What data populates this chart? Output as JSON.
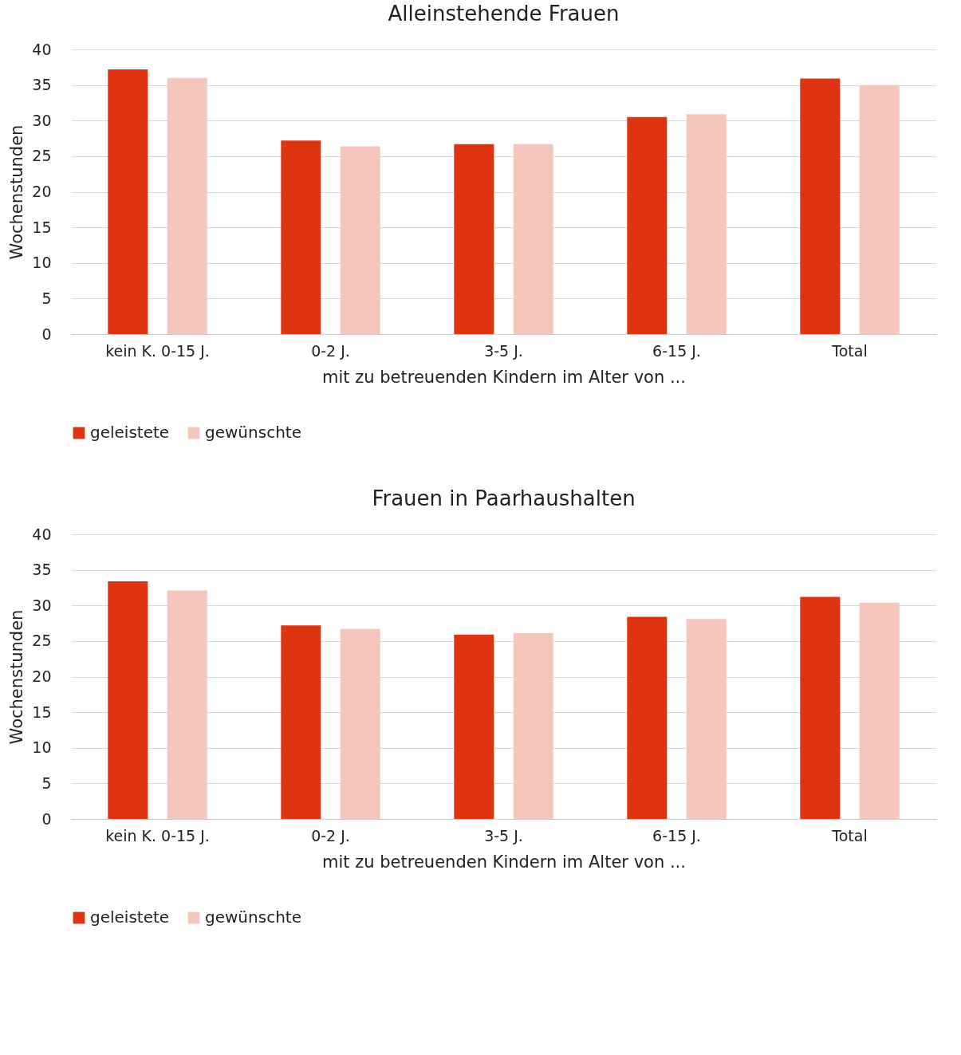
{
  "chart_data": [
    {
      "type": "bar",
      "title": "Alleinstehende Frauen",
      "xlabel": "mit zu betreuenden Kindern im Alter von ...",
      "ylabel": "Wochenstunden",
      "categories": [
        "kein K. 0-15 J.",
        "0-2 J.",
        "3-5 J.",
        "6-15 J.",
        "Total"
      ],
      "series": [
        {
          "name": "geleistete",
          "color": "#de3412",
          "values": [
            37.2,
            27.2,
            26.7,
            30.5,
            35.9
          ]
        },
        {
          "name": "gewünschte",
          "color": "#f5c6bc",
          "values": [
            36.0,
            26.4,
            26.7,
            30.9,
            35.0
          ]
        }
      ],
      "ylim": [
        0,
        40
      ],
      "yticks": [
        0,
        5,
        10,
        15,
        20,
        25,
        30,
        35,
        40
      ],
      "grid": "y",
      "legend": "bottom"
    },
    {
      "type": "bar",
      "title": "Frauen in Paarhaushalten",
      "xlabel": "mit zu betreuenden Kindern im Alter von ...",
      "ylabel": "Wochenstunden",
      "categories": [
        "kein K. 0-15 J.",
        "0-2 J.",
        "3-5 J.",
        "6-15 J.",
        "Total"
      ],
      "series": [
        {
          "name": "geleistete",
          "color": "#de3412",
          "values": [
            33.4,
            27.2,
            25.9,
            28.4,
            31.2
          ]
        },
        {
          "name": "gewünschte",
          "color": "#f5c6bc",
          "values": [
            32.1,
            26.7,
            26.1,
            28.1,
            30.4
          ]
        }
      ],
      "ylim": [
        0,
        40
      ],
      "yticks": [
        0,
        5,
        10,
        15,
        20,
        25,
        30,
        35,
        40
      ],
      "grid": "y",
      "legend": "bottom"
    }
  ]
}
